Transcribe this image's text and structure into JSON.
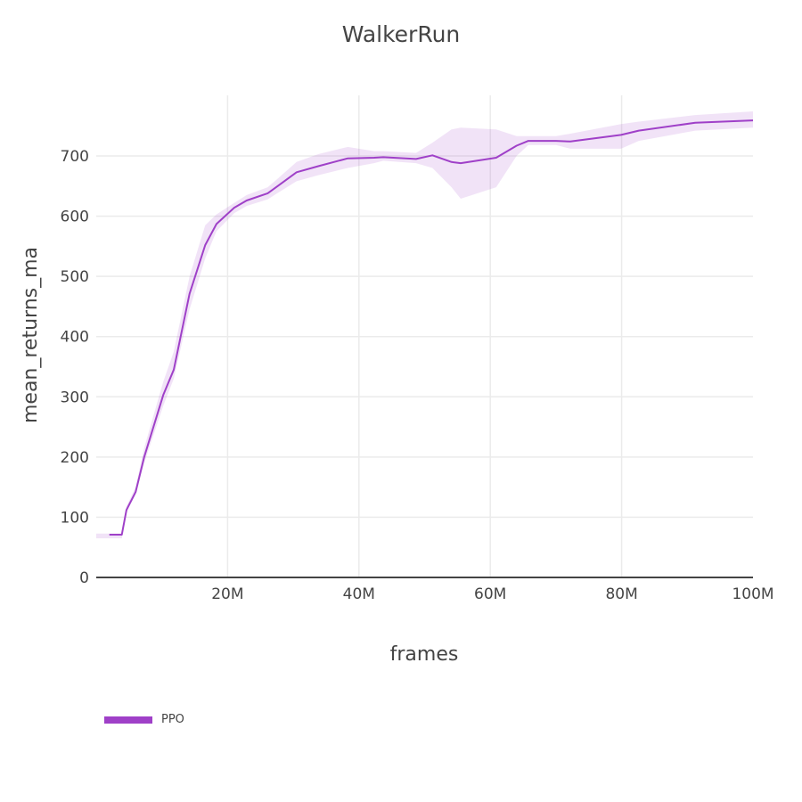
{
  "title": "WalkerRun",
  "xaxis": {
    "label": "frames",
    "ticks": [
      "20M",
      "40M",
      "60M",
      "80M",
      "100M"
    ]
  },
  "yaxis": {
    "label": "mean_returns_ma",
    "ticks": [
      "0",
      "100",
      "200",
      "300",
      "400",
      "500",
      "600",
      "700"
    ]
  },
  "legend": {
    "items": [
      {
        "label": "PPO",
        "color": "#9f40c8"
      }
    ]
  },
  "chart_data": {
    "type": "line",
    "title": "WalkerRun",
    "xlabel": "frames",
    "ylabel": "mean_returns_ma",
    "xlim": [
      0,
      100000000
    ],
    "ylim": [
      0,
      780
    ],
    "x_tick_labels": [
      "20M",
      "40M",
      "60M",
      "80M",
      "100M"
    ],
    "y_tick_labels": [
      "0",
      "100",
      "200",
      "300",
      "400",
      "500",
      "600",
      "700"
    ],
    "grid": true,
    "legend_position": "bottom-left",
    "series": [
      {
        "name": "PPO",
        "color": "#9f40c8",
        "band_color": "rgba(159,64,200,0.15)",
        "x_millions": [
          2.0,
          3.9,
          4.6,
          6.0,
          7.3,
          10.2,
          11.8,
          14.2,
          16.6,
          18.3,
          21.0,
          22.9,
          26.1,
          27.4,
          30.5,
          33.8,
          38.3,
          42.3,
          43.7,
          48.7,
          51.2,
          54.1,
          55.5,
          60.9,
          64.0,
          65.8,
          70.0,
          72.2,
          79.9,
          82.6,
          91.2,
          100.0
        ],
        "values": [
          71,
          71,
          112,
          142,
          200,
          303,
          345,
          471,
          552,
          587,
          614,
          626,
          638,
          648,
          673,
          683,
          696,
          697,
          698,
          695,
          701,
          690,
          688,
          697,
          717,
          725,
          725,
          724,
          735,
          742,
          755,
          759
        ],
        "band_upper": [
          73,
          73,
          118,
          150,
          215,
          325,
          375,
          500,
          585,
          603,
          622,
          635,
          648,
          660,
          690,
          703,
          715,
          708,
          708,
          705,
          722,
          744,
          747,
          744,
          733,
          733,
          733,
          737,
          753,
          757,
          768,
          774
        ],
        "band_lower": [
          65,
          65,
          108,
          138,
          190,
          285,
          330,
          445,
          530,
          575,
          605,
          617,
          628,
          637,
          658,
          668,
          680,
          688,
          692,
          688,
          680,
          648,
          629,
          648,
          700,
          718,
          718,
          712,
          712,
          725,
          742,
          747
        ]
      }
    ]
  }
}
